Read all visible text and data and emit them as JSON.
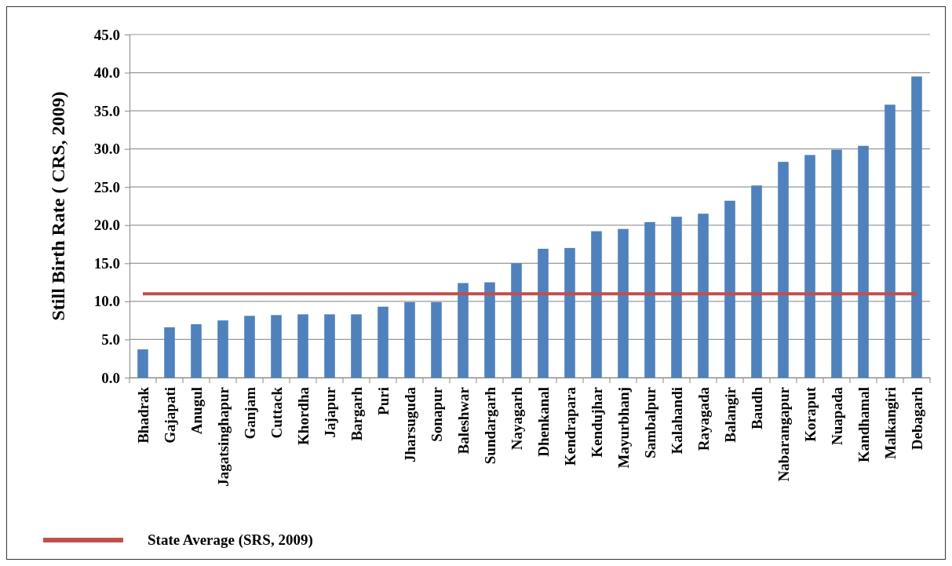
{
  "chart_data": {
    "type": "bar",
    "ylabel": "Still Birth Rate ( CRS, 2009)",
    "categories": [
      "Bhadrak",
      "Gajapati",
      "Anugul",
      "Jagatsinghapur",
      "Ganjam",
      "Cuttack",
      "Khordha",
      "Jajapur",
      "Bargarh",
      "Puri",
      "Jharsuguda",
      "Sonapur",
      "Baleshwar",
      "Sundargarh",
      "Nayagarh",
      "Dhenkanal",
      "Kendrapara",
      "Kendujhar",
      "Mayurbhanj",
      "Sambalpur",
      "Kalahandi",
      "Rayagada",
      "Balangir",
      "Baudh",
      "Nabarangapur",
      "Koraput",
      "Nuapada",
      "Kandhamal",
      "Malkangiri",
      "Debagarh"
    ],
    "series": [
      {
        "color": "#4f81bd",
        "values": [
          3.7,
          6.6,
          7.0,
          7.5,
          8.1,
          8.2,
          8.3,
          8.3,
          8.3,
          9.3,
          9.9,
          9.9,
          12.4,
          12.5,
          15.0,
          16.9,
          17.0,
          19.2,
          19.5,
          20.4,
          21.1,
          21.5,
          23.2,
          25.2,
          28.3,
          29.2,
          29.9,
          30.4,
          35.8,
          39.5
        ]
      },
      {
        "type": "line",
        "name": "State Average (SRS, 2009)",
        "color": "#c0504d",
        "values": [
          11.0,
          11.0,
          11.0,
          11.0,
          11.0,
          11.0,
          11.0,
          11.0,
          11.0,
          11.0,
          11.0,
          11.0,
          11.0,
          11.0,
          11.0,
          11.0,
          11.0,
          11.0,
          11.0,
          11.0,
          11.0,
          11.0,
          11.0,
          11.0,
          11.0,
          11.0,
          11.0,
          11.0,
          11.0,
          11.0
        ]
      }
    ],
    "ylim": [
      0,
      45
    ],
    "yticks": [
      {
        "value": 0,
        "label": "0.0"
      },
      {
        "value": 5,
        "label": "5.0"
      },
      {
        "value": 10,
        "label": "10.0"
      },
      {
        "value": 15,
        "label": "15.0"
      },
      {
        "value": 20,
        "label": "20.0"
      },
      {
        "value": 25,
        "label": "25.0"
      },
      {
        "value": 30,
        "label": "30.0"
      },
      {
        "value": 35,
        "label": "35.0"
      },
      {
        "value": 40,
        "label": "40.0"
      },
      {
        "value": 45,
        "label": "45.0"
      }
    ],
    "grid": "y",
    "legend": "bottom left"
  }
}
